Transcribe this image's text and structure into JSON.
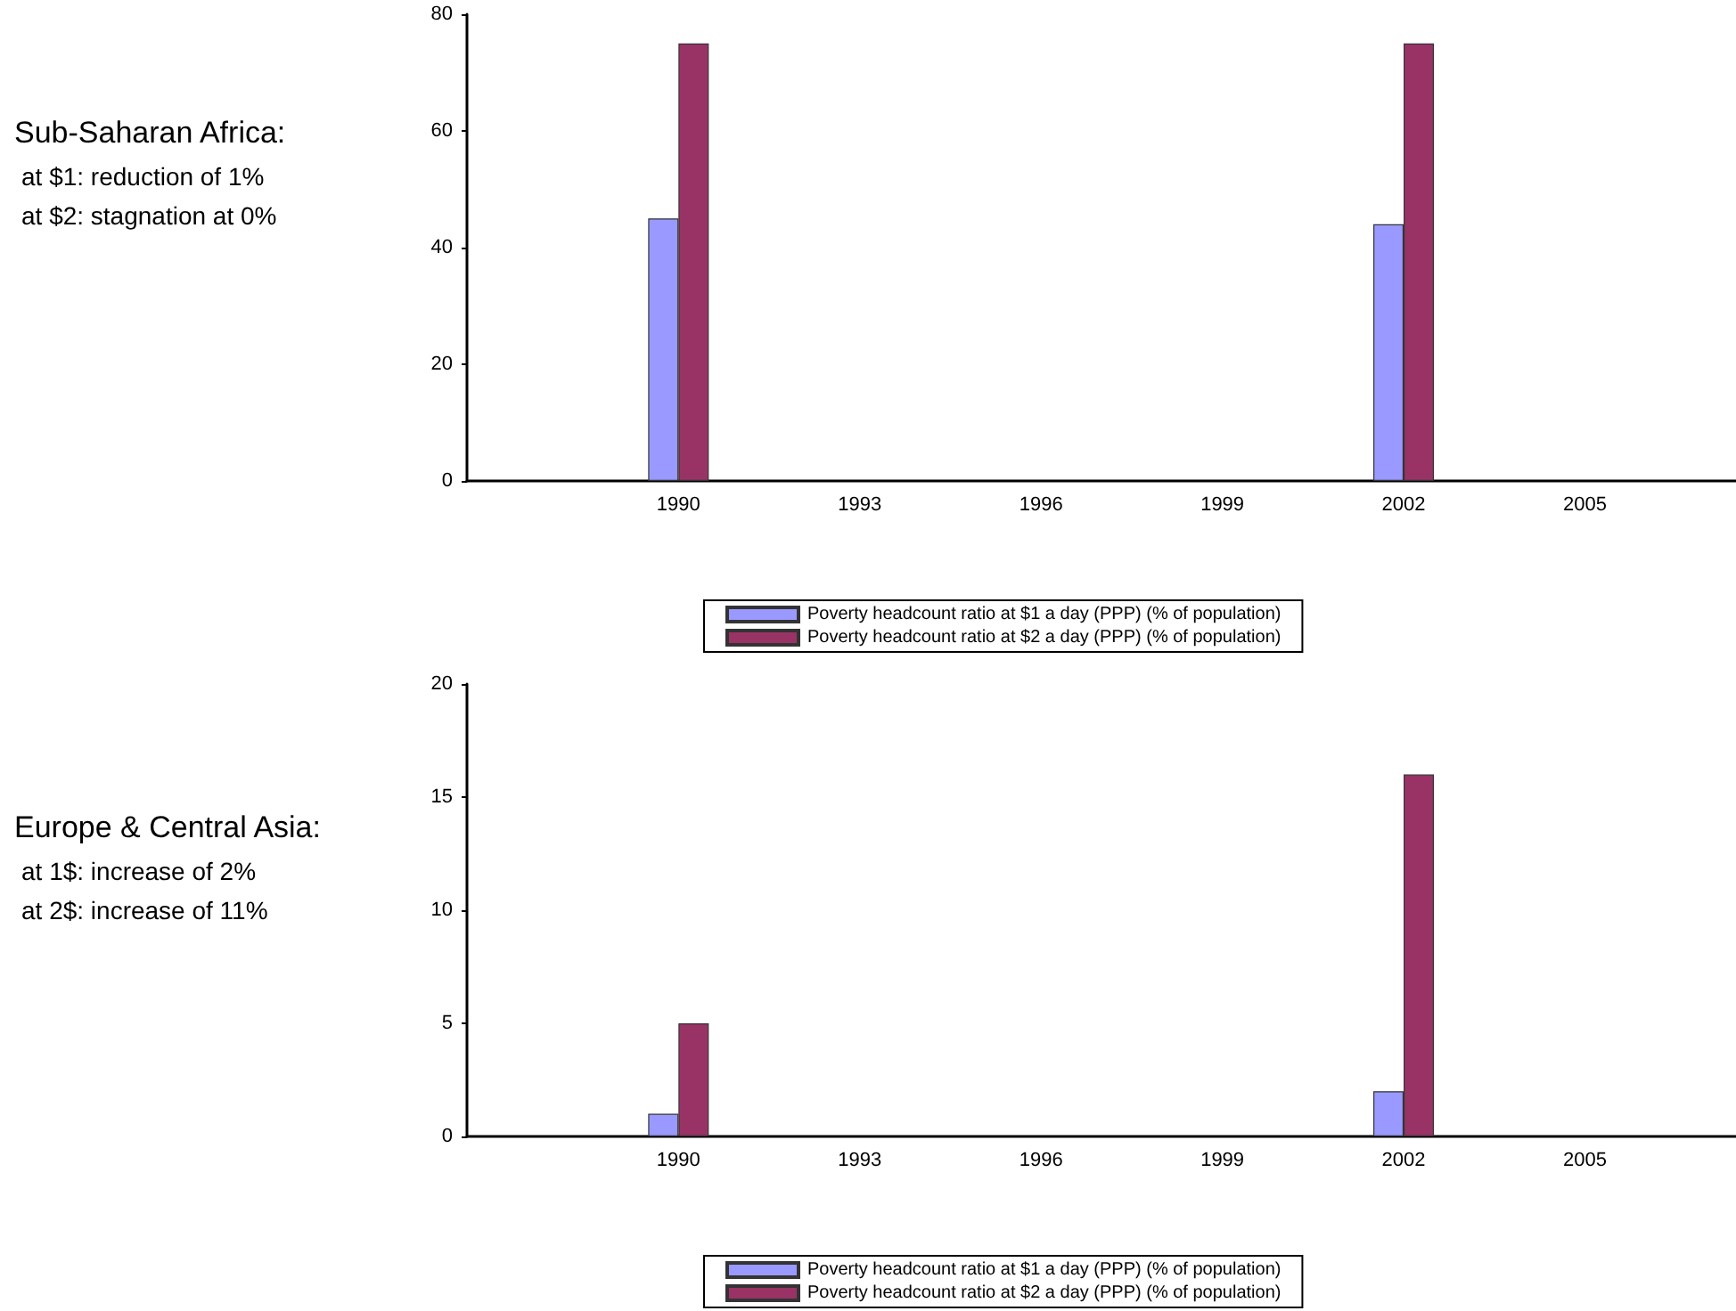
{
  "chart_data": [
    {
      "type": "bar",
      "categories": [
        null,
        null,
        null,
        "1990",
        null,
        null,
        "1993",
        null,
        null,
        "1996",
        null,
        null,
        "1999",
        null,
        null,
        "2002",
        null,
        null,
        "2005",
        null,
        null
      ],
      "series": [
        {
          "name": "Poverty headcount ratio at $1 a day (PPP) (% of population)",
          "color": "#9999ff",
          "values": [
            null,
            null,
            null,
            45,
            null,
            null,
            null,
            null,
            null,
            null,
            null,
            null,
            null,
            null,
            null,
            44,
            null,
            null,
            null,
            null,
            null
          ]
        },
        {
          "name": "Poverty headcount ratio at $2 a day (PPP) (% of population)",
          "color": "#993366",
          "values": [
            null,
            null,
            null,
            75,
            null,
            null,
            null,
            null,
            null,
            null,
            null,
            null,
            null,
            null,
            null,
            75,
            null,
            null,
            null,
            null,
            null
          ]
        }
      ],
      "ylim": [
        0,
        80
      ],
      "yticks": [
        0,
        20,
        40,
        60,
        80
      ],
      "grid": false,
      "legend": "bottom",
      "annotations": [
        "Sub-Saharan Africa:",
        "at $1: reduction of 1%",
        "at $2:  stagnation at 0%"
      ]
    },
    {
      "type": "bar",
      "categories": [
        null,
        null,
        null,
        "1990",
        null,
        null,
        "1993",
        null,
        null,
        "1996",
        null,
        null,
        "1999",
        null,
        null,
        "2002",
        null,
        null,
        "2005",
        null,
        null
      ],
      "series": [
        {
          "name": "Poverty headcount ratio at $1 a day (PPP) (% of population)",
          "color": "#9999ff",
          "values": [
            null,
            null,
            null,
            1,
            null,
            null,
            null,
            null,
            null,
            null,
            null,
            null,
            null,
            null,
            null,
            2,
            null,
            null,
            null,
            null,
            null
          ]
        },
        {
          "name": "Poverty headcount ratio at $2 a day (PPP) (% of population)",
          "color": "#993366",
          "values": [
            null,
            null,
            null,
            5,
            null,
            null,
            null,
            null,
            null,
            null,
            null,
            null,
            null,
            null,
            null,
            16,
            null,
            null,
            null,
            null,
            null
          ]
        }
      ],
      "ylim": [
        0,
        20
      ],
      "yticks": [
        0,
        5,
        10,
        15,
        20
      ],
      "grid": false,
      "legend": "bottom",
      "annotations": [
        "Europe & Central Asia:",
        "at 1$:  increase of 2%",
        "at 2$:  increase of 11%"
      ]
    }
  ]
}
